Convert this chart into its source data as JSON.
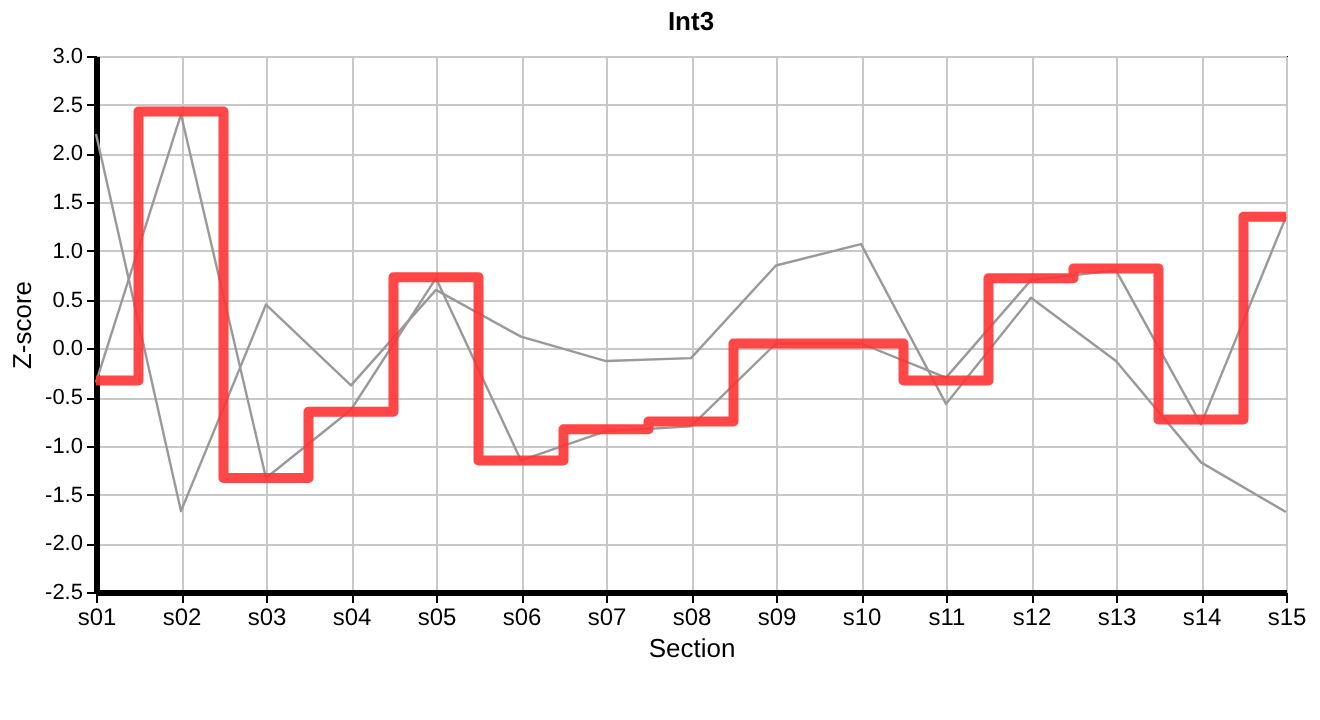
{
  "chart_data": {
    "type": "line",
    "title": "Int3",
    "xlabel": "Section",
    "ylabel": "Z-score",
    "categories": [
      "s01",
      "s02",
      "s03",
      "s04",
      "s05",
      "s06",
      "s07",
      "s08",
      "s09",
      "s10",
      "s11",
      "s12",
      "s13",
      "s14",
      "s15"
    ],
    "series": [
      {
        "color": "#999999",
        "values": [
          2.2,
          -1.67,
          0.45,
          -0.38,
          0.6,
          0.12,
          -0.13,
          -0.1,
          0.85,
          1.07,
          -0.57,
          0.52,
          -0.13,
          -1.17,
          -1.68
        ]
      },
      {
        "color": "#999999",
        "values": [
          -0.35,
          2.4,
          -1.33,
          -0.63,
          0.72,
          -1.15,
          -0.85,
          -0.8,
          0.05,
          0.05,
          -0.3,
          0.7,
          0.8,
          -0.78,
          1.35
        ]
      },
      {
        "type": "step",
        "color": "#ff3333",
        "values": [
          -0.33,
          2.43,
          -1.33,
          -0.65,
          0.73,
          -1.15,
          -0.83,
          -0.75,
          0.05,
          0.05,
          -0.33,
          0.72,
          0.82,
          -0.73,
          1.35
        ]
      }
    ],
    "ylim": [
      -2.5,
      3.0
    ],
    "yticks": [
      {
        "value": -2.5,
        "label": "-2.5"
      },
      {
        "value": -2,
        "label": "-2.0"
      },
      {
        "value": -1.5,
        "label": "-1.5"
      },
      {
        "value": -1,
        "label": "-1.0"
      },
      {
        "value": -0.5,
        "label": "-0.5"
      },
      {
        "value": 0,
        "label": "0.0"
      },
      {
        "value": 0.5,
        "label": "0.5"
      },
      {
        "value": 1,
        "label": "1.0"
      },
      {
        "value": 1.5,
        "label": "1.5"
      },
      {
        "value": 2,
        "label": "2.0"
      },
      {
        "value": 2.5,
        "label": "2.5"
      },
      {
        "value": 3,
        "label": "3.0"
      }
    ],
    "grid": true
  }
}
